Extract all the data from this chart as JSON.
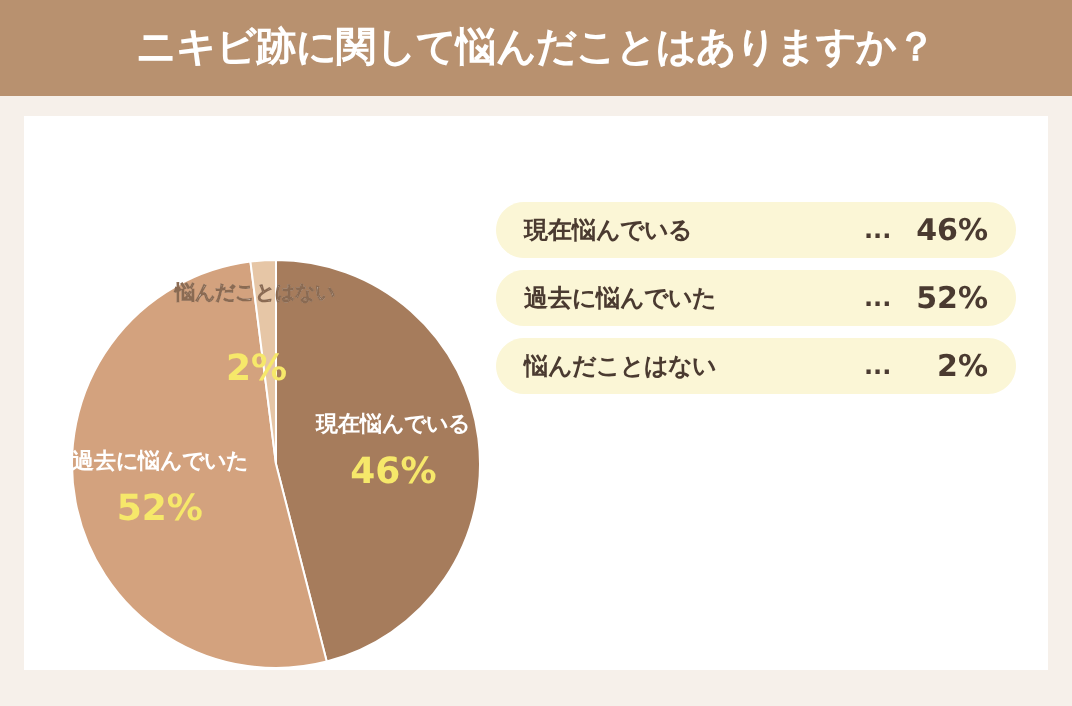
{
  "chart_data": {
    "type": "pie",
    "title": "ニキビ跡に関して悩んだことはありますか？",
    "categories": [
      "現在悩んでいる",
      "過去に悩んでいた",
      "悩んだことはない"
    ],
    "values": [
      46,
      52,
      2
    ],
    "colors": [
      "#a67c5c",
      "#d3a27e",
      "#e6c6a6"
    ],
    "value_labels": [
      "46%",
      "52%",
      "2%"
    ],
    "data_labels": true,
    "annotations": [
      "...",
      "...",
      "..."
    ]
  }
}
